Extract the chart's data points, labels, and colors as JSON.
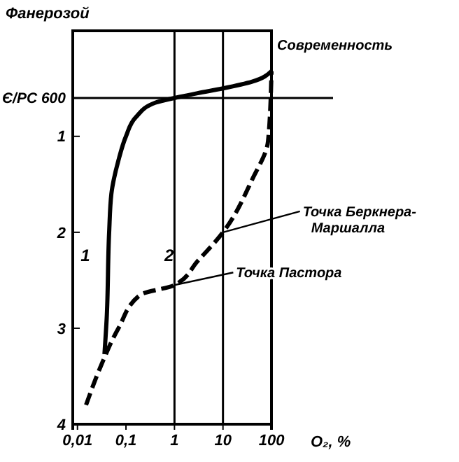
{
  "chart_data": {
    "type": "line",
    "ylabel": "Фанерозой",
    "xlabel": "O₂, %",
    "log": "x",
    "xlim": [
      0.008,
      100
    ],
    "ylim": [
      4,
      -0.1
    ],
    "xticks": [
      {
        "value": 0.01,
        "label": "0,01"
      },
      {
        "value": 0.1,
        "label": "0,1"
      },
      1,
      10,
      100
    ],
    "yticks": [
      1,
      2,
      3,
      4
    ],
    "x": [
      0.036,
      0.04,
      0.045,
      0.05,
      0.07,
      0.1,
      0.16,
      0.4,
      1,
      3,
      10,
      40,
      100
    ],
    "series": [
      {
        "name": "1",
        "color": "#000000",
        "line_style": "solid",
        "values": [
          3.27,
          2.9,
          2.0,
          1.6,
          1.25,
          1.0,
          0.8,
          0.65,
          0.6,
          0.55,
          0.5,
          0.43,
          0.32
        ]
      },
      {
        "name": "2",
        "color": "#000000",
        "line_style": "dashed",
        "x": [
          0.015,
          0.03,
          0.07,
          0.2,
          1,
          3,
          10,
          40,
          85,
          100
        ],
        "values": [
          3.8,
          3.4,
          3.0,
          2.65,
          2.55,
          2.3,
          2.0,
          1.45,
          1.05,
          0.32
        ]
      }
    ],
    "ref_lines": [
      {
        "axis": "y",
        "value": 0.6,
        "label": "Є/PC 600"
      },
      {
        "axis": "x",
        "value": 1,
        "label": null
      },
      {
        "axis": "x",
        "value": 10,
        "label": null
      }
    ],
    "annotations": [
      {
        "text": "Современность",
        "x": 100,
        "y": 0.32
      },
      {
        "text": "Точка Беркнера-Маршалла",
        "x": 10,
        "y": 2.0
      },
      {
        "text": "Точка Пастора",
        "x": 1,
        "y": 2.55
      }
    ]
  }
}
